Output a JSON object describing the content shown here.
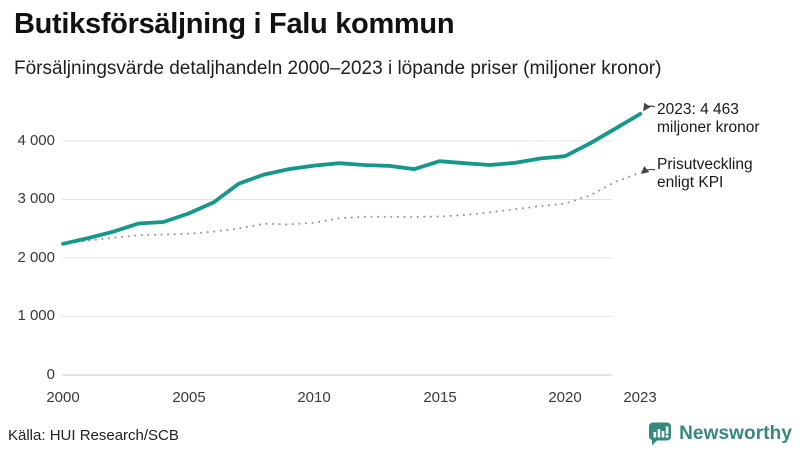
{
  "header": {
    "title": "Butiksförsäljning i Falu kommun",
    "subtitle": "Försäljningsvärde detaljhandeln 2000–2023 i löpande priser (miljoner kronor)"
  },
  "chart_data": {
    "type": "line",
    "title": "Butiksförsäljning i Falu kommun",
    "xlabel": "",
    "ylabel": "miljoner kronor",
    "x": [
      2000,
      2001,
      2002,
      2003,
      2004,
      2005,
      2006,
      2007,
      2008,
      2009,
      2010,
      2011,
      2012,
      2013,
      2014,
      2015,
      2016,
      2017,
      2018,
      2019,
      2020,
      2021,
      2022,
      2023
    ],
    "series": [
      {
        "name": "Butiksförsäljning i löpande priser",
        "color": "#14988a",
        "style": "solid",
        "values": [
          2243,
          2340,
          2450,
          2590,
          2615,
          2760,
          2950,
          3270,
          3425,
          3520,
          3580,
          3620,
          3590,
          3575,
          3520,
          3655,
          3620,
          3590,
          3625,
          3700,
          3740,
          3960,
          4210,
          4463
        ]
      },
      {
        "name": "Prisutveckling enligt KPI",
        "color": "#979797",
        "style": "dotted",
        "values": [
          2243,
          2295,
          2345,
          2390,
          2400,
          2415,
          2450,
          2505,
          2585,
          2575,
          2600,
          2680,
          2705,
          2705,
          2700,
          2710,
          2735,
          2780,
          2835,
          2885,
          2930,
          3070,
          3300,
          3460
        ]
      }
    ],
    "ylim": [
      0,
      4600
    ],
    "xlim": [
      2000,
      2023
    ],
    "grid": "horizontal",
    "legend_position": "none",
    "y_ticks": [
      0,
      1000,
      2000,
      3000,
      4000
    ],
    "y_tick_labels": [
      "0",
      "1 000",
      "2 000",
      "3 000",
      "4 000"
    ],
    "x_ticks": [
      2000,
      2005,
      2010,
      2015,
      2020,
      2023
    ],
    "x_tick_labels": [
      "2000",
      "2005",
      "2010",
      "2015",
      "2020",
      "2023"
    ],
    "annotations": [
      {
        "lines": [
          "2023: 4 463",
          "miljoner kronor"
        ],
        "points_to": "end of sales line"
      },
      {
        "lines": [
          "Prisutveckling",
          "enligt KPI"
        ],
        "points_to": "end of KPI line"
      }
    ]
  },
  "footer": {
    "source": "Källa: HUI Research/SCB",
    "brand": "Newsworthy"
  }
}
